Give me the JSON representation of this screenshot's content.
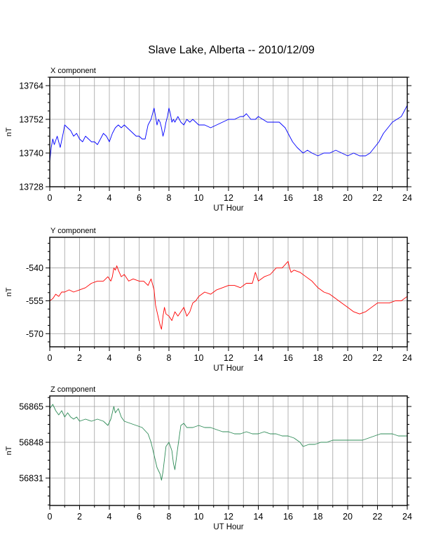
{
  "title": "Slave Lake, Alberta -- 2010/12/09",
  "chart_data": [
    {
      "type": "line",
      "panel_label": "X component",
      "ylabel": "nT",
      "xlabel": "UT Hour",
      "xlim": [
        0,
        24
      ],
      "ylim": [
        13728,
        13767
      ],
      "xticks": [
        0,
        2,
        4,
        6,
        8,
        10,
        12,
        14,
        16,
        18,
        20,
        22,
        24
      ],
      "yticks": [
        13728,
        13740,
        13752,
        13764
      ],
      "grid": true,
      "color": "#0000ff",
      "x": [
        0,
        0.1,
        0.2,
        0.3,
        0.5,
        0.7,
        0.9,
        1.0,
        1.2,
        1.4,
        1.6,
        1.8,
        2.0,
        2.2,
        2.4,
        2.6,
        2.8,
        3.0,
        3.2,
        3.4,
        3.6,
        3.8,
        4.0,
        4.2,
        4.4,
        4.6,
        4.8,
        5.0,
        5.2,
        5.4,
        5.6,
        5.8,
        6.0,
        6.2,
        6.4,
        6.6,
        6.8,
        6.9,
        7.0,
        7.1,
        7.2,
        7.3,
        7.4,
        7.5,
        7.6,
        7.7,
        7.8,
        7.9,
        8.0,
        8.1,
        8.2,
        8.3,
        8.4,
        8.6,
        8.8,
        9.0,
        9.2,
        9.4,
        9.6,
        9.8,
        10.0,
        10.4,
        10.8,
        11.2,
        11.6,
        12.0,
        12.4,
        12.8,
        13.0,
        13.2,
        13.5,
        13.8,
        14.0,
        14.3,
        14.6,
        15.0,
        15.4,
        15.8,
        16.0,
        16.3,
        16.6,
        17.0,
        17.3,
        17.6,
        18.0,
        18.4,
        18.8,
        19.2,
        19.6,
        20.0,
        20.4,
        20.8,
        21.2,
        21.5,
        21.8,
        22.1,
        22.4,
        22.7,
        23.0,
        23.3,
        23.6,
        23.8,
        24.0
      ],
      "values": [
        13737,
        13742,
        13745,
        13743,
        13746,
        13742,
        13747,
        13750,
        13749,
        13748,
        13746,
        13747,
        13745,
        13744,
        13746,
        13745,
        13744,
        13744,
        13743,
        13745,
        13747,
        13746,
        13744,
        13747,
        13749,
        13750,
        13749,
        13750,
        13749,
        13748,
        13747,
        13746,
        13746,
        13745,
        13745,
        13750,
        13752,
        13754,
        13756,
        13753,
        13750,
        13752,
        13751,
        13749,
        13746,
        13748,
        13751,
        13753,
        13756,
        13754,
        13751,
        13752,
        13751,
        13753,
        13751,
        13750,
        13752,
        13751,
        13752,
        13751,
        13750,
        13750,
        13749,
        13750,
        13751,
        13752,
        13752,
        13753,
        13753,
        13754,
        13752,
        13752,
        13753,
        13752,
        13751,
        13751,
        13751,
        13749,
        13747,
        13744,
        13742,
        13740,
        13741,
        13740,
        13739,
        13740,
        13740,
        13741,
        13740,
        13739,
        13740,
        13739,
        13739,
        13740,
        13742,
        13744,
        13747,
        13749,
        13751,
        13752,
        13753,
        13755,
        13757
      ]
    },
    {
      "type": "line",
      "panel_label": "Y component",
      "ylabel": "nT",
      "xlabel": "UT Hour",
      "xlim": [
        0,
        24
      ],
      "ylim": [
        -576,
        -526
      ],
      "xticks": [
        0,
        2,
        4,
        6,
        8,
        10,
        12,
        14,
        16,
        18,
        20,
        22,
        24
      ],
      "yticks": [
        -570,
        -555,
        -540
      ],
      "grid": true,
      "color": "#ff0000",
      "x": [
        0,
        0.2,
        0.4,
        0.6,
        0.8,
        1.0,
        1.3,
        1.6,
        2.0,
        2.4,
        2.8,
        3.2,
        3.6,
        3.9,
        4.1,
        4.2,
        4.3,
        4.4,
        4.5,
        4.6,
        4.8,
        5.0,
        5.3,
        5.6,
        6.0,
        6.3,
        6.6,
        6.8,
        7.0,
        7.1,
        7.2,
        7.3,
        7.4,
        7.5,
        7.6,
        7.7,
        7.8,
        8.0,
        8.2,
        8.4,
        8.6,
        8.8,
        9.0,
        9.2,
        9.4,
        9.6,
        9.8,
        10.0,
        10.4,
        10.8,
        11.2,
        11.6,
        12.0,
        12.4,
        12.8,
        13.2,
        13.6,
        13.8,
        14.0,
        14.4,
        14.8,
        15.2,
        15.6,
        16.0,
        16.1,
        16.2,
        16.4,
        16.8,
        17.2,
        17.6,
        18.0,
        18.4,
        18.8,
        19.2,
        19.6,
        20.0,
        20.4,
        20.8,
        21.2,
        21.6,
        22.0,
        22.4,
        22.8,
        23.2,
        23.6,
        24.0
      ],
      "values": [
        -555,
        -554,
        -552,
        -553,
        -551,
        -551,
        -550,
        -551,
        -550,
        -549,
        -547,
        -546,
        -546,
        -544,
        -546,
        -544,
        -540,
        -541,
        -539,
        -541,
        -544,
        -543,
        -546,
        -545,
        -546,
        -546,
        -548,
        -545,
        -550,
        -557,
        -560,
        -563,
        -566,
        -568,
        -562,
        -558,
        -561,
        -562,
        -564,
        -560,
        -562,
        -560,
        -558,
        -562,
        -560,
        -556,
        -555,
        -553,
        -551,
        -552,
        -550,
        -549,
        -548,
        -548,
        -549,
        -547,
        -547,
        -542,
        -546,
        -544,
        -543,
        -540,
        -540,
        -537,
        -540,
        -542,
        -541,
        -542,
        -544,
        -546,
        -549,
        -551,
        -552,
        -554,
        -556,
        -558,
        -560,
        -561,
        -560,
        -558,
        -556,
        -556,
        -556,
        -555,
        -555,
        -553
      ]
    },
    {
      "type": "line",
      "panel_label": "Z component",
      "ylabel": "nT",
      "xlabel": "UT Hour",
      "xlim": [
        0,
        24
      ],
      "ylim": [
        56818,
        56870
      ],
      "xticks": [
        0,
        2,
        4,
        6,
        8,
        10,
        12,
        14,
        16,
        18,
        20,
        22,
        24
      ],
      "yticks": [
        56831,
        56848,
        56865
      ],
      "grid": true,
      "color": "#2e8b57",
      "x": [
        0,
        0.2,
        0.4,
        0.6,
        0.8,
        1.0,
        1.2,
        1.4,
        1.6,
        1.8,
        2.0,
        2.4,
        2.8,
        3.2,
        3.6,
        3.9,
        4.1,
        4.3,
        4.4,
        4.6,
        4.8,
        5.0,
        5.4,
        5.8,
        6.2,
        6.6,
        6.8,
        7.0,
        7.2,
        7.4,
        7.5,
        7.6,
        7.8,
        8.0,
        8.2,
        8.3,
        8.4,
        8.6,
        8.8,
        9.0,
        9.2,
        9.6,
        10.0,
        10.4,
        10.8,
        11.2,
        11.6,
        12.0,
        12.4,
        12.8,
        13.2,
        13.6,
        14.0,
        14.4,
        14.8,
        15.2,
        15.6,
        16.0,
        16.4,
        16.8,
        17.0,
        17.4,
        17.8,
        18.2,
        18.6,
        19.0,
        19.4,
        19.8,
        20.2,
        20.6,
        21.0,
        21.4,
        21.8,
        22.2,
        22.6,
        23.0,
        23.4,
        23.8,
        24.0
      ],
      "values": [
        56864,
        56866,
        56863,
        56861,
        56863,
        56860,
        56862,
        56860,
        56859,
        56860,
        56858,
        56859,
        56858,
        56859,
        56858,
        56856,
        56859,
        56865,
        56862,
        56864,
        56860,
        56858,
        56857,
        56856,
        56855,
        56852,
        56848,
        56842,
        56836,
        56833,
        56830,
        56834,
        56846,
        56848,
        56844,
        56838,
        56835,
        56846,
        56856,
        56857,
        56855,
        56855,
        56856,
        56855,
        56855,
        56854,
        56853,
        56853,
        56852,
        56852,
        56853,
        56852,
        56852,
        56853,
        56852,
        56852,
        56851,
        56851,
        56850,
        56848,
        56846,
        56847,
        56847,
        56848,
        56848,
        56849,
        56849,
        56849,
        56849,
        56849,
        56849,
        56850,
        56851,
        56852,
        56852,
        56852,
        56851,
        56851,
        56851
      ]
    }
  ]
}
